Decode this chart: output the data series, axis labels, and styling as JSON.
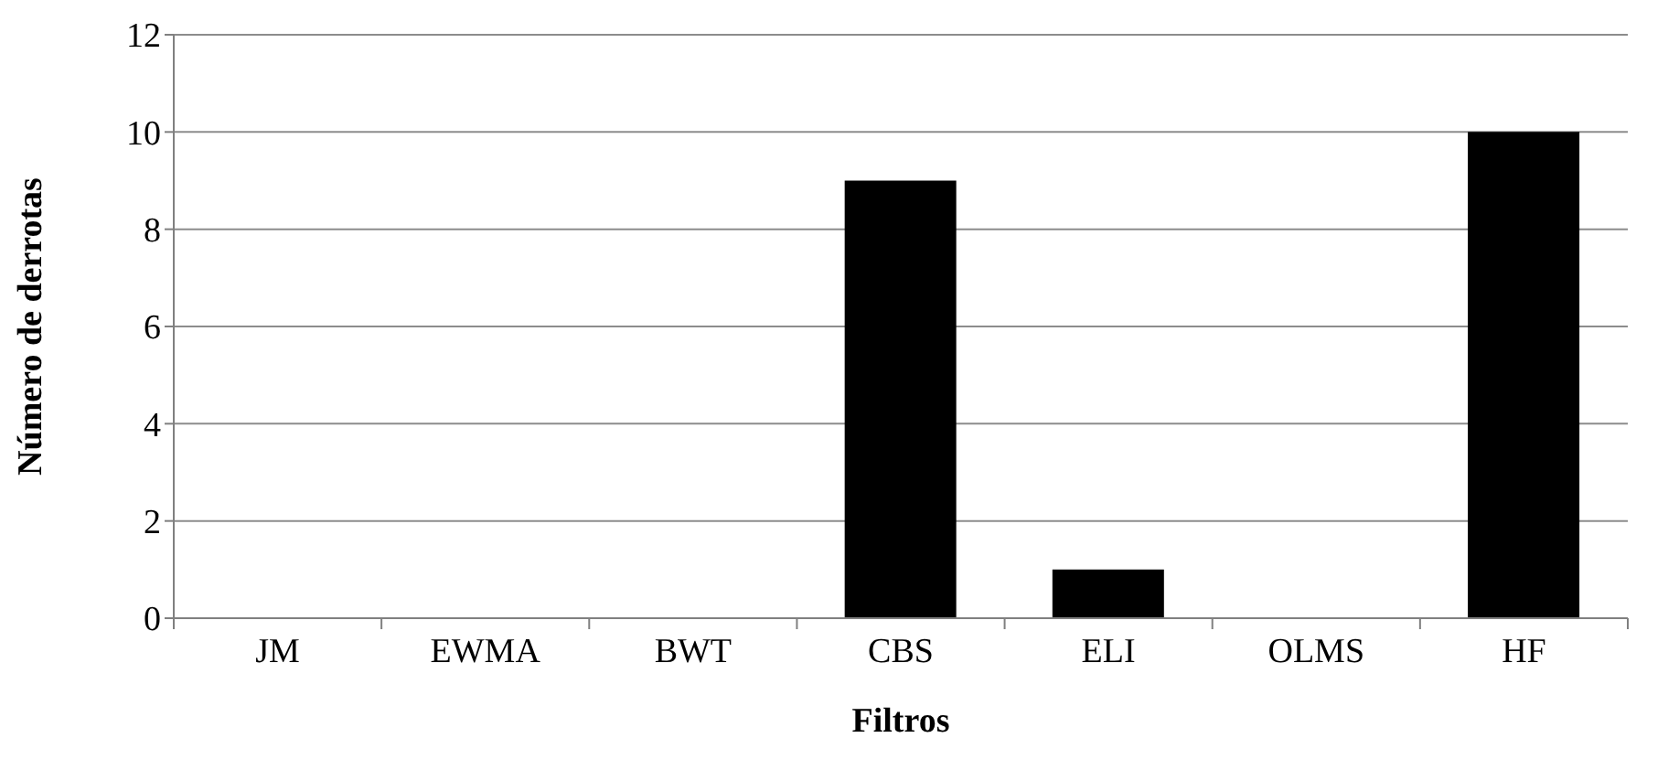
{
  "chart_data": {
    "type": "bar",
    "xlabel": "Filtros",
    "ylabel": "Número de derrotas",
    "categories": [
      "JM",
      "EWMA",
      "BWT",
      "CBS",
      "ELI",
      "OLMS",
      "HF"
    ],
    "values": [
      0,
      0,
      0,
      9,
      1,
      0,
      10
    ],
    "color": "#000000",
    "ylim": [
      0,
      12
    ],
    "yticks": [
      0,
      2,
      4,
      6,
      8,
      10,
      12
    ],
    "grid": "y"
  }
}
